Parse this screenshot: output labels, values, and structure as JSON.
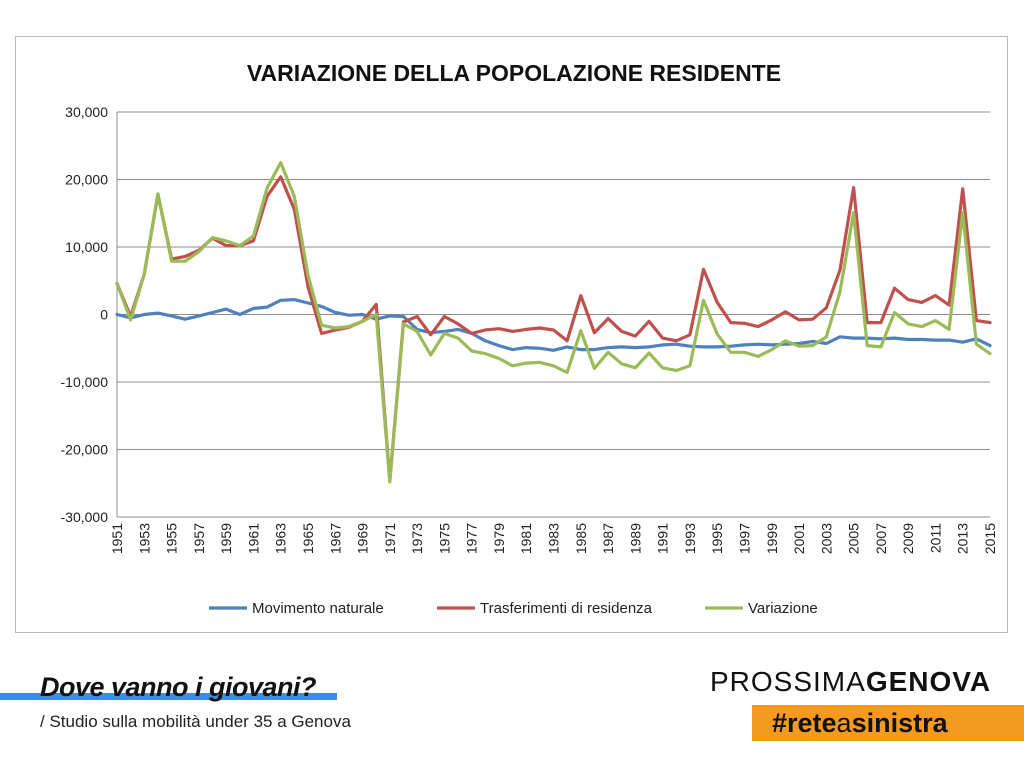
{
  "chart_data": {
    "type": "line",
    "title": "VARIAZIONE DELLA POPOLAZIONE RESIDENTE",
    "xlabel": "",
    "ylabel": "",
    "ylim": [
      -30000,
      30000
    ],
    "y_ticks": [
      30000,
      20000,
      10000,
      0,
      -10000,
      -20000,
      -30000
    ],
    "y_tick_labels": [
      "30,000",
      "20,000",
      "10,000",
      "0",
      "-10,000",
      "-20,000",
      "-30,000"
    ],
    "x_tick_labels": [
      "1951",
      "1953",
      "1955",
      "1957",
      "1959",
      "1961",
      "1963",
      "1965",
      "1967",
      "1969",
      "1971",
      "1973",
      "1975",
      "1977",
      "1979",
      "1981",
      "1983",
      "1985",
      "1987",
      "1989",
      "1991",
      "1993",
      "1995",
      "1997",
      "1999",
      "2001",
      "2003",
      "2005",
      "2007",
      "2009",
      "2011",
      "2013",
      "2015"
    ],
    "grid": "horizontal",
    "legend_position": "bottom",
    "x": [
      1951,
      1952,
      1953,
      1954,
      1955,
      1956,
      1957,
      1958,
      1959,
      1960,
      1961,
      1962,
      1963,
      1964,
      1965,
      1966,
      1967,
      1968,
      1969,
      1970,
      1971,
      1972,
      1973,
      1974,
      1975,
      1976,
      1977,
      1978,
      1979,
      1980,
      1981,
      1982,
      1983,
      1984,
      1985,
      1986,
      1987,
      1988,
      1989,
      1990,
      1991,
      1992,
      1993,
      1994,
      1995,
      1996,
      1997,
      1998,
      1999,
      2000,
      2001,
      2002,
      2003,
      2004,
      2005,
      2006,
      2007,
      2008,
      2009,
      2010,
      2011,
      2012,
      2013,
      2014,
      2015
    ],
    "series": [
      {
        "name": "Movimento naturale",
        "color": "#4f81bd",
        "values": [
          0,
          -500,
          0,
          200,
          -200,
          -700,
          -200,
          300,
          800,
          0,
          900,
          1100,
          2100,
          2200,
          1700,
          1200,
          300,
          -100,
          0,
          -700,
          -200,
          -300,
          -2200,
          -2700,
          -2500,
          -2200,
          -2800,
          -3900,
          -4600,
          -5200,
          -4900,
          -5000,
          -5300,
          -4800,
          -5200,
          -5200,
          -4900,
          -4800,
          -4900,
          -4800,
          -4500,
          -4400,
          -4700,
          -4800,
          -4800,
          -4700,
          -4500,
          -4400,
          -4500,
          -4400,
          -4300,
          -4000,
          -4300,
          -3300,
          -3500,
          -3500,
          -3600,
          -3500,
          -3700,
          -3700,
          -3800,
          -3800,
          -4100,
          -3600,
          -4600
        ]
      },
      {
        "name": "Trasferimenti di residenza",
        "color": "#c0504d",
        "values": [
          4600,
          -300,
          6000,
          17800,
          8200,
          8600,
          9500,
          11300,
          10200,
          10200,
          10900,
          17500,
          20400,
          15600,
          4100,
          -2800,
          -2300,
          -1900,
          -1000,
          1500,
          -24600,
          -1100,
          -300,
          -3000,
          -300,
          -1400,
          -2800,
          -2300,
          -2100,
          -2500,
          -2200,
          -2000,
          -2300,
          -3900,
          2800,
          -2700,
          -600,
          -2500,
          -3200,
          -1000,
          -3500,
          -3900,
          -3000,
          6700,
          1800,
          -1200,
          -1300,
          -1800,
          -800,
          400,
          -800,
          -700,
          1000,
          6600,
          18800,
          -1200,
          -1200,
          3900,
          2200,
          1800,
          2800,
          1400,
          18600,
          -900,
          -1200
        ]
      },
      {
        "name": "Variazione",
        "color": "#9bbb59",
        "values": [
          4600,
          -800,
          6000,
          17900,
          7900,
          7900,
          9300,
          11400,
          10900,
          10200,
          11600,
          18700,
          22500,
          17500,
          5800,
          -1600,
          -2000,
          -1800,
          -1000,
          0,
          -24800,
          -1400,
          -2500,
          -6000,
          -2800,
          -3500,
          -5400,
          -5800,
          -6500,
          -7600,
          -7200,
          -7100,
          -7600,
          -8600,
          -2400,
          -8000,
          -5600,
          -7300,
          -7900,
          -5700,
          -7900,
          -8300,
          -7600,
          2100,
          -2900,
          -5600,
          -5600,
          -6200,
          -5200,
          -3900,
          -4700,
          -4600,
          -3300,
          3400,
          15100,
          -4600,
          -4800,
          300,
          -1400,
          -1800,
          -900,
          -2200,
          15100,
          -4400,
          -5800
        ]
      }
    ]
  },
  "footer": {
    "title": "Dove vanno i giovani?",
    "subtitle": "/ Studio sulla mobilità under 35 a Genova",
    "brand_light": "PROSSIMA",
    "brand_bold": "GENOVA",
    "hashtag_part1": "#rete",
    "hashtag_part2": "a",
    "hashtag_part3": "sinistra"
  }
}
